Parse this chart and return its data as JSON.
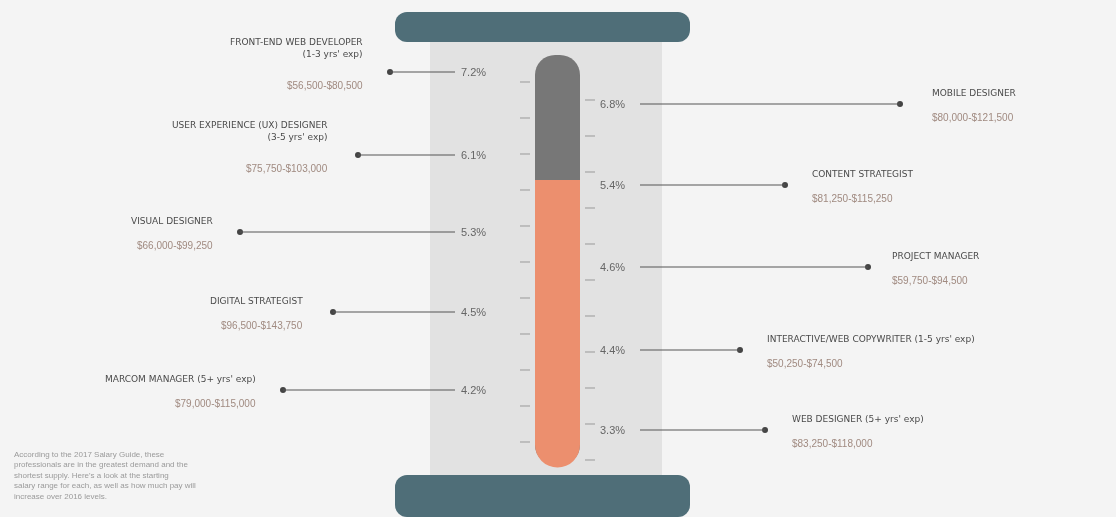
{
  "chart_data": {
    "type": "other",
    "categories": [
      "FRONT-END WEB DEVELOPER\n(1-3 yrs' exp)",
      "MOBILE DESIGNER",
      "USER EXPERIENCE (UX) DESIGNER\n(3-5 yrs' exp)",
      "CONTENT STRATEGIST",
      "VISUAL DESIGNER",
      "PROJECT MANAGER",
      "DIGITAL STRATEGIST",
      "INTERACTIVE/WEB COPYWRITER (1-5 yrs' exp)",
      "MARCOM MANAGER (5+ yrs' exp)",
      "WEB DESIGNER (5+ yrs' exp)"
    ],
    "values": [
      7.2,
      6.8,
      6.1,
      5.4,
      5.3,
      4.6,
      4.5,
      4.4,
      4.2,
      3.3
    ],
    "value_labels": [
      "7.2%",
      "6.8%",
      "6.1%",
      "5.4%",
      "5.3%",
      "4.6%",
      "4.5%",
      "4.4%",
      "4.2%",
      "3.3%"
    ],
    "annotations": [
      "$56,500-$80,500",
      "$80,000-$121,500",
      "$75,750-$103,000",
      "$81,250-$115,250",
      "$66,000-$99,250",
      "$59,750-$94,500",
      "$96,500-$143,750",
      "$50,250-$74,500",
      "$79,000-$115,000",
      "$83,250-$118,000",
      "According to the 2017 Salary Guide, these professionals are in the greatest demand and the shortest supply. Here's a look at the starting salary range for each, as well as how much pay will increase over 2016 levels."
    ]
  }
}
